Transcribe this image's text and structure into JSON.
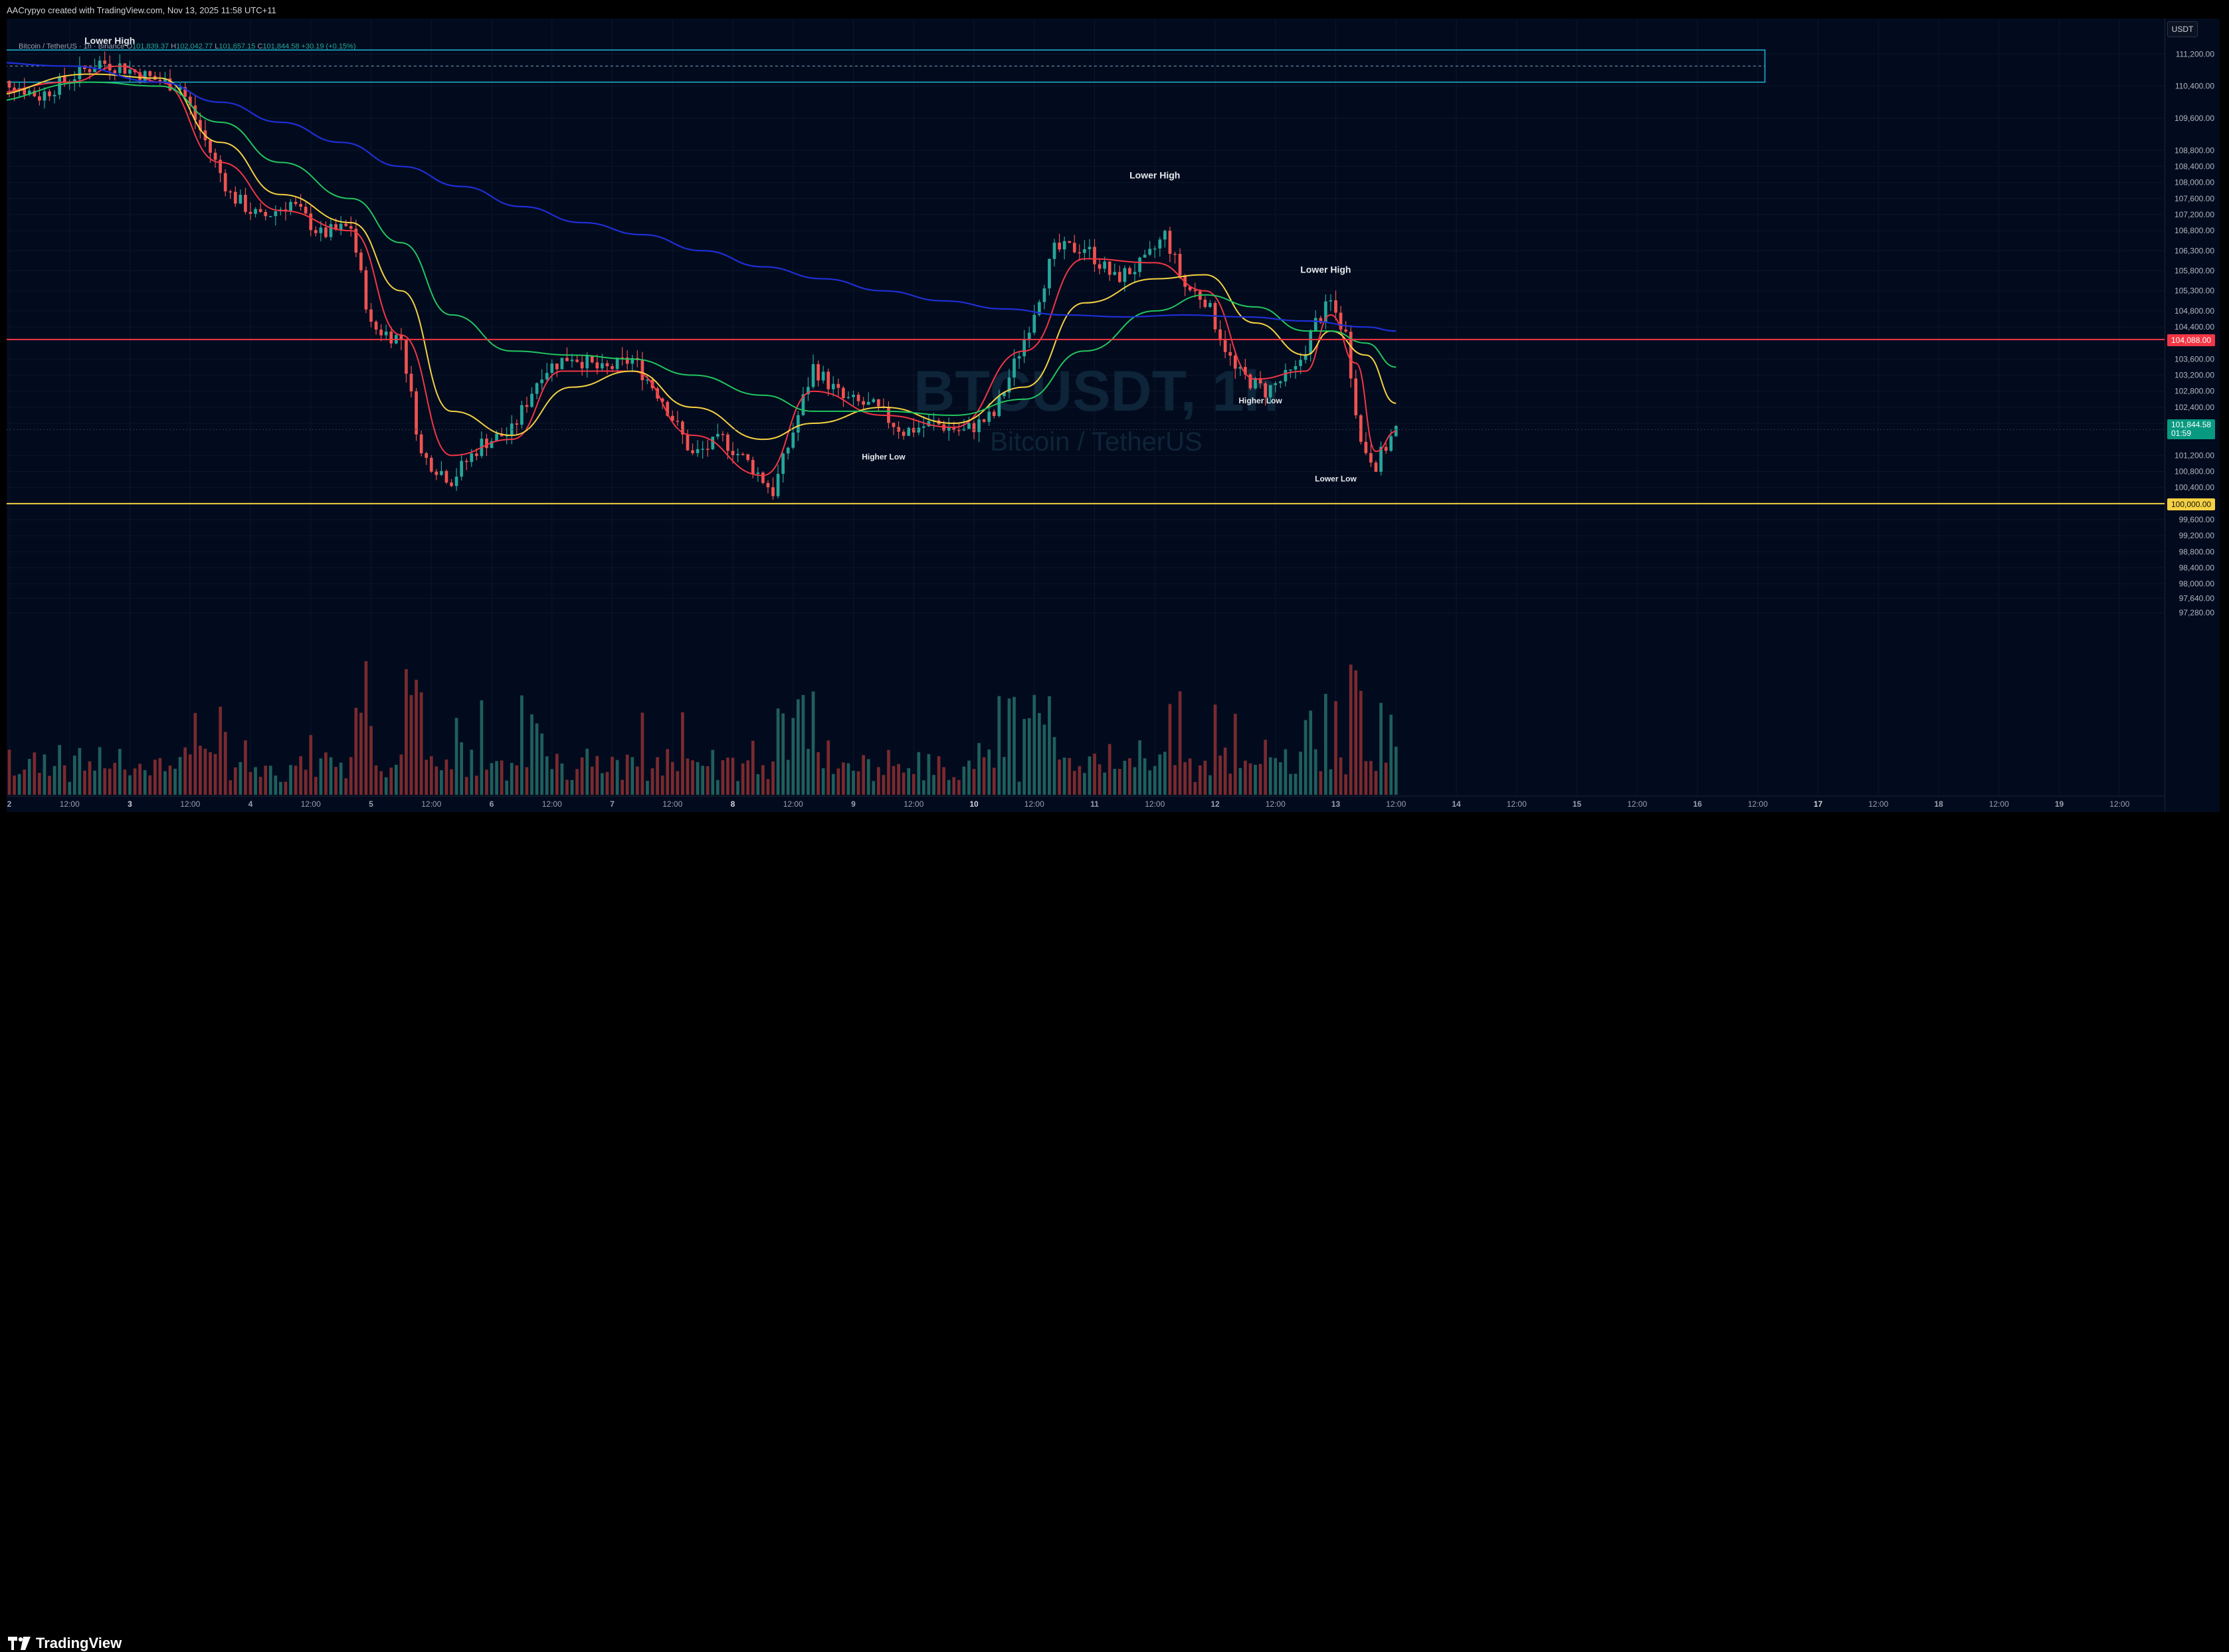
{
  "header": {
    "credit": "AACrypyo created with TradingView.com, Nov 13, 2025 11:58 UTC+11"
  },
  "legend": {
    "symbol": "Bitcoin / TetherUS · 1h · Binance",
    "o_label": "O",
    "o_value": "101,839.37",
    "h_label": "H",
    "h_value": "102,042.77",
    "l_label": "L",
    "l_value": "101,657.15",
    "c_label": "C",
    "c_value": "101,844.58",
    "change": "+30.19 (+0.15%)"
  },
  "watermark": {
    "symbol": "BTCUSDT, 1h",
    "name": "Bitcoin / TetherUS"
  },
  "axis": {
    "currency": "USDT"
  },
  "price_tags": {
    "resistance": "104,088.00",
    "last_price": "101,844.58",
    "countdown": "01:59",
    "support": "100,000.00"
  },
  "annotations": [
    {
      "text": "Lower High",
      "x": "Nov 2 20:00",
      "y": 111450
    },
    {
      "text": "Lower High",
      "x": "Nov 11 12:00",
      "y": 108100
    },
    {
      "text": "Lower High",
      "x": "Nov 12 22:00",
      "y": 105750
    },
    {
      "text": "Higher Low",
      "x": "Nov 9 06:00",
      "y": 101100
    },
    {
      "text": "Higher Low",
      "x": "Nov 12 09:00",
      "y": 102500
    },
    {
      "text": "Lower Low",
      "x": "Nov 13 00:00",
      "y": 100550
    }
  ],
  "brand": {
    "logo": "tradingview-logo",
    "name": "TradingView"
  },
  "colors": {
    "background": "#020b1e",
    "up": "#26a69a",
    "down": "#ef5350",
    "ema_fast": "#f23645",
    "ema_mid": "#f5d142",
    "ema_slow": "#22c55e",
    "ema_long": "#1e2fd6",
    "resistance": "#f23645",
    "support": "#f5d142",
    "zone": "#1fb6d6"
  },
  "chart_data": {
    "type": "candlestick",
    "title": "",
    "interval": "1h",
    "xlabel": "",
    "ylabel": "",
    "ylim": [
      97100,
      111950
    ],
    "yticks": [
      "111,200.00",
      "110,400.00",
      "109,600.00",
      "108,800.00",
      "108,400.00",
      "108,000.00",
      "107,600.00",
      "107,200.00",
      "106,800.00",
      "106,300.00",
      "105,800.00",
      "105,300.00",
      "104,800.00",
      "104,400.00",
      "103,600.00",
      "103,200.00",
      "102,800.00",
      "102,400.00",
      "102,000.00",
      "101,200.00",
      "100,800.00",
      "100,400.00",
      "99,600.00",
      "99,200.00",
      "98,800.00",
      "98,400.00",
      "98,000.00",
      "97,640.00",
      "97,280.00"
    ],
    "xticks": [
      "2",
      "12:00",
      "3",
      "12:00",
      "4",
      "12:00",
      "5",
      "12:00",
      "6",
      "12:00",
      "7",
      "12:00",
      "8",
      "12:00",
      "9",
      "12:00",
      "10",
      "12:00",
      "11",
      "12:00",
      "12",
      "12:00",
      "13",
      "12:00",
      "14",
      "12:00",
      "15",
      "12:00",
      "16",
      "12:00",
      "17",
      "12:00",
      "18",
      "12:00",
      "19",
      "12:00"
    ],
    "horizontal_levels": [
      {
        "name": "resistance",
        "value": 104088
      },
      {
        "name": "support",
        "value": 100000
      }
    ],
    "zone": {
      "from": 110500,
      "to": 111300,
      "start": "Nov 1 22:00",
      "end": "Nov 17 00:00",
      "midline": 110900
    },
    "close_path": [
      [
        "Nov 1 18:00",
        110250
      ],
      [
        "Nov 2 00:00",
        110500
      ],
      [
        "Nov 2 06:00",
        110150
      ],
      [
        "Nov 2 12:00",
        110600
      ],
      [
        "Nov 2 18:00",
        111000
      ],
      [
        "Nov 2 22:00",
        110900
      ],
      [
        "Nov 3 04:00",
        110600
      ],
      [
        "Nov 3 10:00",
        110400
      ],
      [
        "Nov 3 14:00",
        109300
      ],
      [
        "Nov 3 20:00",
        107700
      ],
      [
        "Nov 4 02:00",
        107100
      ],
      [
        "Nov 4 08:00",
        107500
      ],
      [
        "Nov 4 14:00",
        106700
      ],
      [
        "Nov 4 20:00",
        106900
      ],
      [
        "Nov 5 00:00",
        104400
      ],
      [
        "Nov 5 06:00",
        104100
      ],
      [
        "Nov 5 10:00",
        101200
      ],
      [
        "Nov 5 16:00",
        100600
      ],
      [
        "Nov 5 22:00",
        101500
      ],
      [
        "Nov 6 04:00",
        101800
      ],
      [
        "Nov 6 10:00",
        103300
      ],
      [
        "Nov 6 16:00",
        103700
      ],
      [
        "Nov 6 22:00",
        103300
      ],
      [
        "Nov 7 04:00",
        103600
      ],
      [
        "Nov 7 10:00",
        102600
      ],
      [
        "Nov 7 16:00",
        101200
      ],
      [
        "Nov 7 22:00",
        101600
      ],
      [
        "Nov 8 04:00",
        100900
      ],
      [
        "Nov 8 08:00",
        100300
      ],
      [
        "Nov 8 12:00",
        101800
      ],
      [
        "Nov 8 16:00",
        103400
      ],
      [
        "Nov 8 22:00",
        102600
      ],
      [
        "Nov 9 04:00",
        102400
      ],
      [
        "Nov 9 10:00",
        101800
      ],
      [
        "Nov 9 16:00",
        102000
      ],
      [
        "Nov 9 22:00",
        101800
      ],
      [
        "Nov 10 04:00",
        102200
      ],
      [
        "Nov 10 10:00",
        104100
      ],
      [
        "Nov 10 16:00",
        106300
      ],
      [
        "Nov 10 22:00",
        106400
      ],
      [
        "Nov 11 04:00",
        105600
      ],
      [
        "Nov 11 10:00",
        106000
      ],
      [
        "Nov 11 14:00",
        106700
      ],
      [
        "Nov 11 18:00",
        105400
      ],
      [
        "Nov 11 22:00",
        105100
      ],
      [
        "Nov 12 04:00",
        103300
      ],
      [
        "Nov 12 10:00",
        102800
      ],
      [
        "Nov 12 16:00",
        103300
      ],
      [
        "Nov 12 20:00",
        104500
      ],
      [
        "Nov 12 23:00",
        105000
      ],
      [
        "Nov 13 02:00",
        104200
      ],
      [
        "Nov 13 05:00",
        101500
      ],
      [
        "Nov 13 08:00",
        101000
      ],
      [
        "Nov 13 12:00",
        101844.58
      ]
    ],
    "series": [
      {
        "name": "",
        "role": "EMA fast",
        "points": [
          [
            "Nov 1 18:00",
            110200
          ],
          [
            "Nov 2 12:00",
            110500
          ],
          [
            "Nov 2 22:00",
            110900
          ],
          [
            "Nov 3 06:00",
            110500
          ],
          [
            "Nov 3 18:00",
            108500
          ],
          [
            "Nov 4 06:00",
            107300
          ],
          [
            "Nov 4 20:00",
            106800
          ],
          [
            "Nov 5 06:00",
            104200
          ],
          [
            "Nov 5 16:00",
            101200
          ],
          [
            "Nov 6 04:00",
            101600
          ],
          [
            "Nov 6 14:00",
            103300
          ],
          [
            "Nov 7 04:00",
            103300
          ],
          [
            "Nov 7 16:00",
            101700
          ],
          [
            "Nov 8 06:00",
            100700
          ],
          [
            "Nov 8 16:00",
            102800
          ],
          [
            "Nov 9 06:00",
            102200
          ],
          [
            "Nov 9 20:00",
            101900
          ],
          [
            "Nov 10 10:00",
            103800
          ],
          [
            "Nov 10 22:00",
            106100
          ],
          [
            "Nov 11 12:00",
            106000
          ],
          [
            "Nov 11 22:00",
            105300
          ],
          [
            "Nov 12 08:00",
            103100
          ],
          [
            "Nov 12 18:00",
            103300
          ],
          [
            "Nov 12 23:00",
            104700
          ],
          [
            "Nov 13 04:00",
            103500
          ],
          [
            "Nov 13 08:00",
            101300
          ],
          [
            "Nov 13 12:00",
            101800
          ]
        ]
      },
      {
        "name": "",
        "role": "EMA mid",
        "points": [
          [
            "Nov 1 18:00",
            110150
          ],
          [
            "Nov 2 16:00",
            110700
          ],
          [
            "Nov 3 06:00",
            110600
          ],
          [
            "Nov 3 18:00",
            109000
          ],
          [
            "Nov 4 06:00",
            107700
          ],
          [
            "Nov 4 20:00",
            107000
          ],
          [
            "Nov 5 06:00",
            105300
          ],
          [
            "Nov 5 16:00",
            102300
          ],
          [
            "Nov 6 04:00",
            101700
          ],
          [
            "Nov 6 16:00",
            102900
          ],
          [
            "Nov 7 04:00",
            103300
          ],
          [
            "Nov 7 16:00",
            102400
          ],
          [
            "Nov 8 06:00",
            101600
          ],
          [
            "Nov 8 16:00",
            102000
          ],
          [
            "Nov 9 06:00",
            102400
          ],
          [
            "Nov 9 20:00",
            102000
          ],
          [
            "Nov 10 10:00",
            102900
          ],
          [
            "Nov 10 22:00",
            105000
          ],
          [
            "Nov 11 12:00",
            105600
          ],
          [
            "Nov 11 22:00",
            105700
          ],
          [
            "Nov 12 08:00",
            104500
          ],
          [
            "Nov 12 18:00",
            103700
          ],
          [
            "Nov 12 23:00",
            104300
          ],
          [
            "Nov 13 06:00",
            103700
          ],
          [
            "Nov 13 12:00",
            102500
          ]
        ]
      },
      {
        "name": "",
        "role": "EMA slow",
        "points": [
          [
            "Nov 1 18:00",
            110000
          ],
          [
            "Nov 2 16:00",
            110500
          ],
          [
            "Nov 3 06:00",
            110400
          ],
          [
            "Nov 3 18:00",
            109500
          ],
          [
            "Nov 4 06:00",
            108500
          ],
          [
            "Nov 4 20:00",
            107600
          ],
          [
            "Nov 5 06:00",
            106500
          ],
          [
            "Nov 5 16:00",
            104700
          ],
          [
            "Nov 6 04:00",
            103800
          ],
          [
            "Nov 6 16:00",
            103700
          ],
          [
            "Nov 7 04:00",
            103600
          ],
          [
            "Nov 7 16:00",
            103200
          ],
          [
            "Nov 8 06:00",
            102700
          ],
          [
            "Nov 8 16:00",
            102300
          ],
          [
            "Nov 9 06:00",
            102300
          ],
          [
            "Nov 9 20:00",
            102200
          ],
          [
            "Nov 10 10:00",
            102600
          ],
          [
            "Nov 10 22:00",
            103800
          ],
          [
            "Nov 11 12:00",
            104800
          ],
          [
            "Nov 11 22:00",
            105200
          ],
          [
            "Nov 12 08:00",
            104900
          ],
          [
            "Nov 12 18:00",
            104300
          ],
          [
            "Nov 12 23:00",
            104300
          ],
          [
            "Nov 13 06:00",
            104000
          ],
          [
            "Nov 13 12:00",
            103400
          ]
        ]
      },
      {
        "name": "",
        "role": "EMA long",
        "points": [
          [
            "Nov 1 18:00",
            111000
          ],
          [
            "Nov 2 12:00",
            110900
          ],
          [
            "Nov 3 06:00",
            110500
          ],
          [
            "Nov 3 18:00",
            110000
          ],
          [
            "Nov 4 06:00",
            109500
          ],
          [
            "Nov 4 18:00",
            109000
          ],
          [
            "Nov 5 06:00",
            108400
          ],
          [
            "Nov 5 18:00",
            107900
          ],
          [
            "Nov 6 06:00",
            107400
          ],
          [
            "Nov 6 18:00",
            107000
          ],
          [
            "Nov 7 06:00",
            106700
          ],
          [
            "Nov 7 18:00",
            106300
          ],
          [
            "Nov 8 06:00",
            105900
          ],
          [
            "Nov 8 18:00",
            105600
          ],
          [
            "Nov 9 06:00",
            105300
          ],
          [
            "Nov 9 18:00",
            105050
          ],
          [
            "Nov 10 06:00",
            104850
          ],
          [
            "Nov 10 18:00",
            104700
          ],
          [
            "Nov 11 06:00",
            104650
          ],
          [
            "Nov 11 18:00",
            104700
          ],
          [
            "Nov 12 06:00",
            104650
          ],
          [
            "Nov 12 18:00",
            104550
          ],
          [
            "Nov 13 06:00",
            104400
          ],
          [
            "Nov 13 12:00",
            104300
          ]
        ]
      }
    ],
    "volume": "histogram shown below price, red/teal per candle"
  }
}
